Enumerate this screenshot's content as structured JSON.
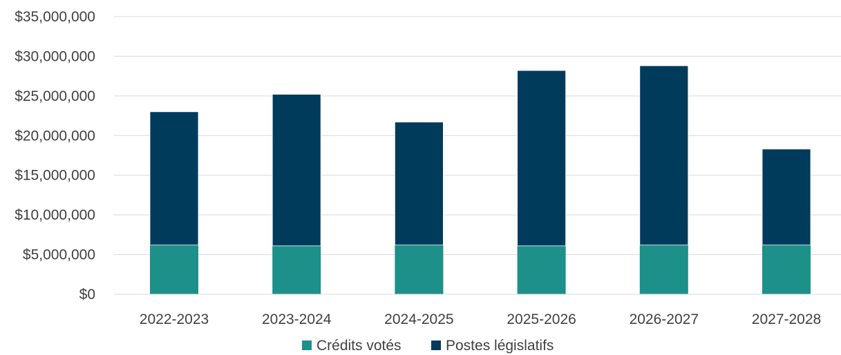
{
  "chart_data": {
    "type": "bar",
    "stacked": true,
    "categories": [
      "2022-2023",
      "2023-2024",
      "2024-2025",
      "2025-2026",
      "2026-2027",
      "2027-2028"
    ],
    "series": [
      {
        "name": "Crédits votés",
        "color": "#1c9089",
        "values": [
          6200000,
          6100000,
          6200000,
          6100000,
          6200000,
          6200000
        ]
      },
      {
        "name": "Postes législatifs",
        "color": "#003b5c",
        "values": [
          16800000,
          19100000,
          15500000,
          22100000,
          22600000,
          12100000
        ]
      }
    ],
    "y_ticks": [
      "$0",
      "$5,000,000",
      "$10,000,000",
      "$15,000,000",
      "$20,000,000",
      "$25,000,000",
      "$30,000,000",
      "$35,000,000"
    ],
    "ylim": [
      0,
      35000000
    ],
    "grid": true,
    "legend_position": "bottom"
  }
}
